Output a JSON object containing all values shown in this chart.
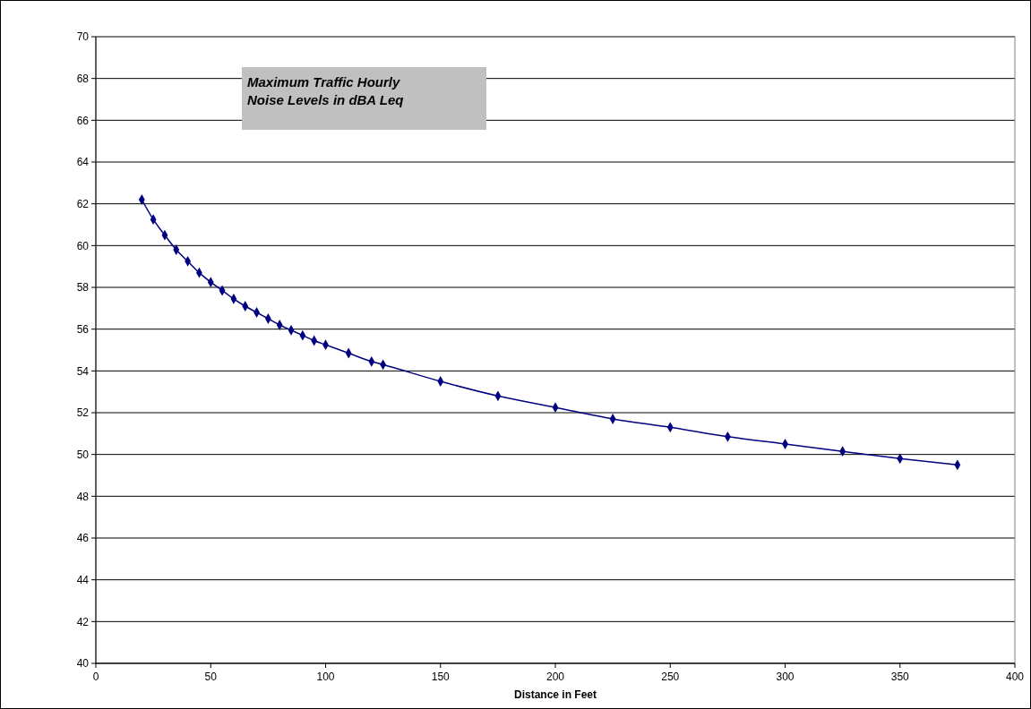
{
  "chart_data": {
    "type": "line",
    "title": "Maximum Traffic Hourly Noise Levels in dBA Leq",
    "xlabel": "Distance in Feet",
    "x": [
      20,
      25,
      30,
      35,
      40,
      45,
      50,
      55,
      60,
      65,
      70,
      75,
      80,
      85,
      90,
      95,
      100,
      110,
      120,
      125,
      150,
      175,
      200,
      225,
      250,
      275,
      300,
      325,
      350,
      375
    ],
    "series": [
      {
        "color": "#000080",
        "values": [
          62.2,
          61.25,
          60.5,
          59.8,
          59.25,
          58.7,
          58.25,
          57.85,
          57.45,
          57.1,
          56.8,
          56.5,
          56.2,
          55.95,
          55.7,
          55.45,
          55.25,
          54.85,
          54.45,
          54.3,
          53.5,
          52.8,
          52.25,
          51.7,
          51.3,
          50.85,
          50.5,
          50.15,
          49.8,
          49.5
        ]
      }
    ],
    "xlim": [
      0,
      400
    ],
    "xticks": [
      0,
      50,
      100,
      150,
      200,
      250,
      300,
      350,
      400
    ],
    "ylim": [
      40,
      70
    ],
    "yticks": [
      40,
      42,
      44,
      46,
      48,
      50,
      52,
      54,
      56,
      58,
      60,
      62,
      64,
      66,
      68,
      70
    ],
    "grid": "y",
    "marker": "diamond",
    "line_style": "solid"
  }
}
